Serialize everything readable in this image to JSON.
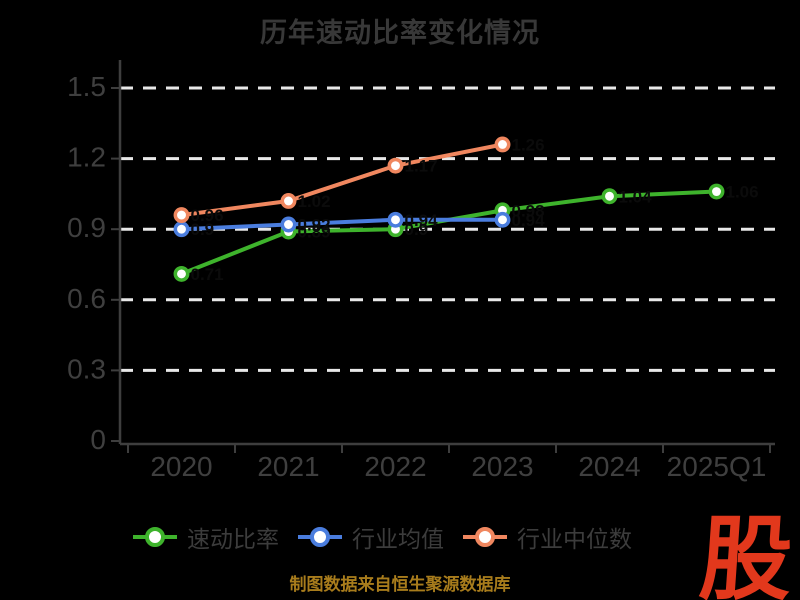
{
  "title": "历年速动比率变化情况",
  "chart_data": {
    "type": "line",
    "categories": [
      "2020",
      "2021",
      "2022",
      "2023",
      "2024",
      "2025Q1"
    ],
    "series": [
      {
        "name": "速动比率",
        "color": "#3eb32c",
        "values": [
          0.71,
          0.89,
          0.9,
          0.98,
          1.04,
          1.06
        ],
        "point_labels": [
          "0.71",
          "0.89",
          "0.9",
          "0.98",
          "1.04",
          "1.06"
        ]
      },
      {
        "name": "行业均值",
        "color": "#4a7dde",
        "values": [
          0.9,
          0.92,
          0.94,
          0.94,
          null,
          null
        ],
        "point_labels": [
          "0.9",
          "0.92",
          "0.94",
          "0.94"
        ]
      },
      {
        "name": "行业中位数",
        "color": "#f0875f",
        "values": [
          0.96,
          1.02,
          1.17,
          1.26,
          null,
          null
        ],
        "point_labels": [
          "0.96",
          "1.02",
          "1.17",
          "1.26"
        ]
      }
    ],
    "xlabel": "",
    "ylabel": "",
    "ylim": [
      0,
      1.5
    ],
    "ytick_step": 0.3,
    "ytick_labels": [
      "0",
      "0.3",
      "0.6",
      "0.9",
      "1.2",
      "1.5"
    ],
    "grid": "horizontal-dashed",
    "legend_position": "bottom",
    "marker_style": "circle-white-fill",
    "data_label_color": "#0b0b0b",
    "background": "#000000"
  },
  "colors": {
    "background": "#000000",
    "title_text": "#383838",
    "axis": "#3e3e3e",
    "tick_label_text": "#3f3f3f",
    "gridline": "#e8e8e8",
    "legend_text": "#3c3c3c",
    "footer_text": "#a87c1c",
    "logo_red": "#e2381c"
  },
  "footer": {
    "source_note": "制图数据来自恒生聚源数据库",
    "logo_text": "股"
  }
}
